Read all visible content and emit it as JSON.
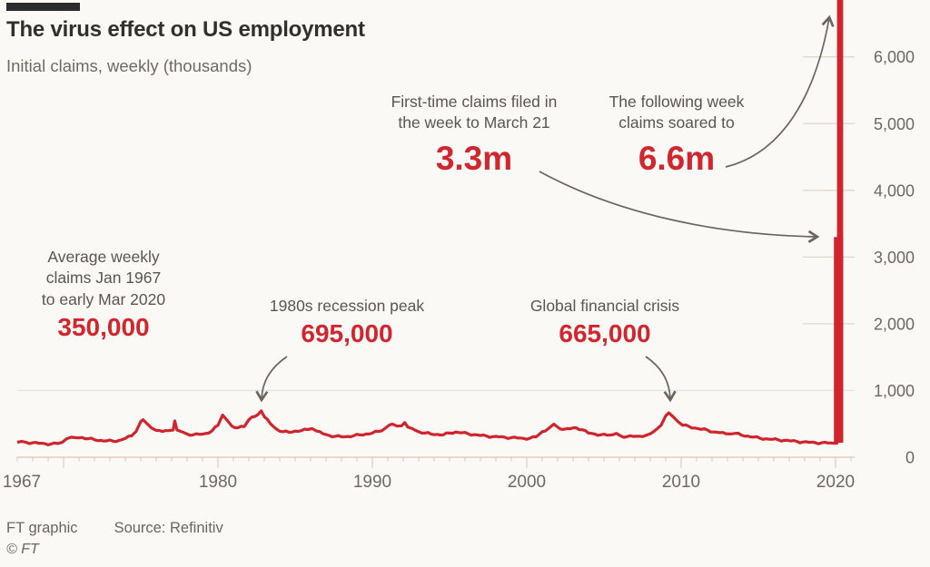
{
  "header": {
    "title": "The virus effect on US employment",
    "subtitle": "Initial claims, weekly (thousands)",
    "brand_bar_color": "#2b2b2b"
  },
  "annotations": [
    {
      "id": "march21",
      "label": "First-time claims filed in\nthe week to March 21",
      "value": "3.3m"
    },
    {
      "id": "following_week",
      "label": "The following week\nclaims soared to",
      "value": "6.6m"
    },
    {
      "id": "average",
      "label": "Average weekly\nclaims Jan 1967\nto early Mar 2020",
      "value": "350,000"
    },
    {
      "id": "recession_peak",
      "label": "1980s recession peak",
      "value": "695,000"
    },
    {
      "id": "gfc",
      "label": "Global financial crisis",
      "value": "665,000"
    }
  ],
  "footer": {
    "credit": "FT graphic",
    "source": "Source: Refinitiv",
    "copyright": "© FT"
  },
  "colors": {
    "series_red": "#d0252e",
    "value_red": "#d2252d",
    "text_dark": "#33302c",
    "text_gray": "#5b5550",
    "axis_gray": "#6e6862",
    "axis_line_pink": "#e4cabc",
    "grid_light": "#eae4dd",
    "grid_right_tick": "#ded7cf",
    "background": "#fbf9f6"
  },
  "chart_data": {
    "type": "line",
    "title": "The virus effect on US employment",
    "subtitle": "Initial claims, weekly (thousands)",
    "units": "thousands of first-time claims per week",
    "xlim": [
      1967,
      2021.3
    ],
    "ylim": [
      0,
      6850
    ],
    "x_ticks": [
      1967,
      1980,
      1990,
      2000,
      2010,
      2020
    ],
    "x_minor_tick_every_years": 1,
    "x_major_ticks": [
      1970,
      1980,
      1990,
      2000,
      2010,
      2020
    ],
    "y_ticks": [
      0,
      1000,
      2000,
      3000,
      4000,
      5000,
      6000
    ],
    "grid": "full-width gridline at 1,000; short right-side ticks at 2,000-6,000; y labels on right",
    "legend": "none",
    "key_values": {
      "average_weekly_claims_1967_to_early_mar_2020": 350,
      "peak_1982_recession": 695,
      "peak_global_financial_crisis_2009": 665,
      "week_to_march_21_2020": 3300,
      "following_week_2020": 6600
    },
    "spike": {
      "x_year": 2020.22,
      "week_to_march_21": 3300,
      "following_week": 6600
    },
    "points": [
      [
        1967.0,
        225
      ],
      [
        1967.3,
        238
      ],
      [
        1967.6,
        222
      ],
      [
        1968.0,
        218
      ],
      [
        1968.4,
        208
      ],
      [
        1968.8,
        202
      ],
      [
        1969.2,
        198
      ],
      [
        1969.6,
        205
      ],
      [
        1969.9,
        222
      ],
      [
        1970.2,
        278
      ],
      [
        1970.5,
        300
      ],
      [
        1970.8,
        292
      ],
      [
        1971.2,
        296
      ],
      [
        1971.6,
        278
      ],
      [
        1972.0,
        262
      ],
      [
        1972.4,
        252
      ],
      [
        1972.8,
        246
      ],
      [
        1973.2,
        240
      ],
      [
        1973.6,
        252
      ],
      [
        1974.0,
        282
      ],
      [
        1974.4,
        320
      ],
      [
        1974.7,
        388
      ],
      [
        1975.0,
        535
      ],
      [
        1975.15,
        562
      ],
      [
        1975.4,
        505
      ],
      [
        1975.7,
        438
      ],
      [
        1976.0,
        402
      ],
      [
        1976.4,
        386
      ],
      [
        1976.8,
        398
      ],
      [
        1977.1,
        408
      ],
      [
        1977.2,
        545
      ],
      [
        1977.35,
        408
      ],
      [
        1977.7,
        378
      ],
      [
        1978.0,
        348
      ],
      [
        1978.4,
        336
      ],
      [
        1978.8,
        342
      ],
      [
        1979.2,
        356
      ],
      [
        1979.6,
        392
      ],
      [
        1980.0,
        478
      ],
      [
        1980.3,
        632
      ],
      [
        1980.6,
        552
      ],
      [
        1980.9,
        468
      ],
      [
        1981.3,
        442
      ],
      [
        1981.7,
        458
      ],
      [
        1982.0,
        562
      ],
      [
        1982.4,
        612
      ],
      [
        1982.8,
        695
      ],
      [
        1983.0,
        608
      ],
      [
        1983.4,
        502
      ],
      [
        1983.8,
        420
      ],
      [
        1984.2,
        382
      ],
      [
        1984.6,
        374
      ],
      [
        1985.0,
        392
      ],
      [
        1985.4,
        398
      ],
      [
        1985.8,
        415
      ],
      [
        1986.1,
        428
      ],
      [
        1986.4,
        392
      ],
      [
        1986.8,
        352
      ],
      [
        1987.2,
        326
      ],
      [
        1987.6,
        314
      ],
      [
        1988.0,
        306
      ],
      [
        1988.4,
        312
      ],
      [
        1988.8,
        322
      ],
      [
        1989.2,
        334
      ],
      [
        1989.6,
        348
      ],
      [
        1990.0,
        362
      ],
      [
        1990.4,
        386
      ],
      [
        1990.8,
        428
      ],
      [
        1991.1,
        482
      ],
      [
        1991.3,
        498
      ],
      [
        1991.6,
        466
      ],
      [
        1991.9,
        472
      ],
      [
        1992.1,
        520
      ],
      [
        1992.3,
        452
      ],
      [
        1992.6,
        428
      ],
      [
        1993.0,
        382
      ],
      [
        1993.4,
        362
      ],
      [
        1993.8,
        348
      ],
      [
        1994.2,
        342
      ],
      [
        1994.6,
        336
      ],
      [
        1995.0,
        362
      ],
      [
        1995.4,
        378
      ],
      [
        1995.8,
        366
      ],
      [
        1996.2,
        352
      ],
      [
        1996.6,
        338
      ],
      [
        1997.0,
        326
      ],
      [
        1997.4,
        318
      ],
      [
        1997.8,
        308
      ],
      [
        1998.2,
        304
      ],
      [
        1998.6,
        298
      ],
      [
        1999.0,
        294
      ],
      [
        1999.4,
        288
      ],
      [
        1999.8,
        282
      ],
      [
        2000.2,
        284
      ],
      [
        2000.6,
        304
      ],
      [
        2001.0,
        382
      ],
      [
        2001.4,
        428
      ],
      [
        2001.75,
        496
      ],
      [
        2002.0,
        452
      ],
      [
        2002.4,
        418
      ],
      [
        2002.8,
        426
      ],
      [
        2003.2,
        442
      ],
      [
        2003.6,
        412
      ],
      [
        2004.0,
        362
      ],
      [
        2004.4,
        348
      ],
      [
        2004.8,
        336
      ],
      [
        2005.2,
        330
      ],
      [
        2005.6,
        338
      ],
      [
        2005.8,
        358
      ],
      [
        2006.1,
        318
      ],
      [
        2006.5,
        308
      ],
      [
        2006.9,
        312
      ],
      [
        2007.3,
        316
      ],
      [
        2007.7,
        326
      ],
      [
        2008.0,
        352
      ],
      [
        2008.4,
        418
      ],
      [
        2008.7,
        478
      ],
      [
        2009.0,
        622
      ],
      [
        2009.2,
        665
      ],
      [
        2009.5,
        602
      ],
      [
        2009.8,
        532
      ],
      [
        2010.1,
        478
      ],
      [
        2010.5,
        462
      ],
      [
        2010.9,
        438
      ],
      [
        2011.3,
        418
      ],
      [
        2011.7,
        408
      ],
      [
        2012.1,
        378
      ],
      [
        2012.5,
        368
      ],
      [
        2012.9,
        352
      ],
      [
        2013.2,
        348
      ],
      [
        2013.5,
        358
      ],
      [
        2013.9,
        332
      ],
      [
        2014.3,
        318
      ],
      [
        2014.7,
        302
      ],
      [
        2015.1,
        284
      ],
      [
        2015.5,
        276
      ],
      [
        2015.9,
        268
      ],
      [
        2016.3,
        260
      ],
      [
        2016.7,
        254
      ],
      [
        2017.1,
        244
      ],
      [
        2017.5,
        236
      ],
      [
        2017.9,
        228
      ],
      [
        2018.3,
        222
      ],
      [
        2018.7,
        218
      ],
      [
        2019.1,
        216
      ],
      [
        2019.5,
        214
      ],
      [
        2019.9,
        210
      ],
      [
        2020.1,
        212
      ],
      [
        2020.17,
        282
      ]
    ]
  }
}
